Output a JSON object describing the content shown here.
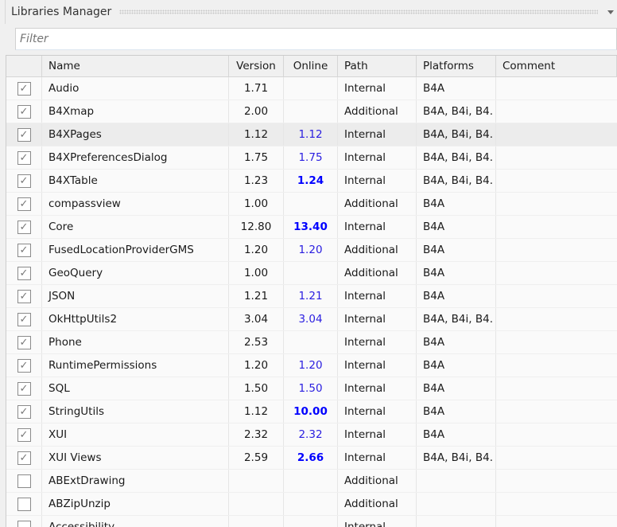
{
  "title": "Libraries Manager",
  "filter": {
    "placeholder": "Filter",
    "value": ""
  },
  "colors": {
    "online_normal": "#2a1ee0",
    "online_newer": "#0000ff"
  },
  "columns": [
    "",
    "Name",
    "Version",
    "Online",
    "Path",
    "Platforms",
    "Comment"
  ],
  "rows": [
    {
      "checked": true,
      "name": "Audio",
      "version": "1.71",
      "online": "",
      "newer": false,
      "path": "Internal",
      "platforms": "B4A",
      "comment": ""
    },
    {
      "checked": true,
      "name": "B4Xmap",
      "version": "2.00",
      "online": "",
      "newer": false,
      "path": "Additional",
      "platforms": "B4A, B4i, B4.",
      "comment": ""
    },
    {
      "checked": true,
      "name": "B4XPages",
      "version": "1.12",
      "online": "1.12",
      "newer": false,
      "path": "Internal",
      "platforms": "B4A, B4i, B4.",
      "comment": "",
      "selected": true
    },
    {
      "checked": true,
      "name": "B4XPreferencesDialog",
      "version": "1.75",
      "online": "1.75",
      "newer": false,
      "path": "Internal",
      "platforms": "B4A, B4i, B4.",
      "comment": ""
    },
    {
      "checked": true,
      "name": "B4XTable",
      "version": "1.23",
      "online": "1.24",
      "newer": true,
      "path": "Internal",
      "platforms": "B4A, B4i, B4.",
      "comment": ""
    },
    {
      "checked": true,
      "name": "compassview",
      "version": "1.00",
      "online": "",
      "newer": false,
      "path": "Additional",
      "platforms": "B4A",
      "comment": ""
    },
    {
      "checked": true,
      "name": "Core",
      "version": "12.80",
      "online": "13.40",
      "newer": true,
      "path": "Internal",
      "platforms": "B4A",
      "comment": ""
    },
    {
      "checked": true,
      "name": "FusedLocationProviderGMS",
      "version": "1.20",
      "online": "1.20",
      "newer": false,
      "path": "Additional",
      "platforms": "B4A",
      "comment": ""
    },
    {
      "checked": true,
      "name": "GeoQuery",
      "version": "1.00",
      "online": "",
      "newer": false,
      "path": "Additional",
      "platforms": "B4A",
      "comment": ""
    },
    {
      "checked": true,
      "name": "JSON",
      "version": "1.21",
      "online": "1.21",
      "newer": false,
      "path": "Internal",
      "platforms": "B4A",
      "comment": ""
    },
    {
      "checked": true,
      "name": "OkHttpUtils2",
      "version": "3.04",
      "online": "3.04",
      "newer": false,
      "path": "Internal",
      "platforms": "B4A, B4i, B4.",
      "comment": ""
    },
    {
      "checked": true,
      "name": "Phone",
      "version": "2.53",
      "online": "",
      "newer": false,
      "path": "Internal",
      "platforms": "B4A",
      "comment": ""
    },
    {
      "checked": true,
      "name": "RuntimePermissions",
      "version": "1.20",
      "online": "1.20",
      "newer": false,
      "path": "Internal",
      "platforms": "B4A",
      "comment": ""
    },
    {
      "checked": true,
      "name": "SQL",
      "version": "1.50",
      "online": "1.50",
      "newer": false,
      "path": "Internal",
      "platforms": "B4A",
      "comment": ""
    },
    {
      "checked": true,
      "name": "StringUtils",
      "version": "1.12",
      "online": "10.00",
      "newer": true,
      "path": "Internal",
      "platforms": "B4A",
      "comment": ""
    },
    {
      "checked": true,
      "name": "XUI",
      "version": "2.32",
      "online": "2.32",
      "newer": false,
      "path": "Internal",
      "platforms": "B4A",
      "comment": ""
    },
    {
      "checked": true,
      "name": "XUI Views",
      "version": "2.59",
      "online": "2.66",
      "newer": true,
      "path": "Internal",
      "platforms": "B4A, B4i, B4.",
      "comment": ""
    },
    {
      "checked": false,
      "name": "ABExtDrawing",
      "version": "",
      "online": "",
      "newer": false,
      "path": "Additional",
      "platforms": "",
      "comment": ""
    },
    {
      "checked": false,
      "name": "ABZipUnzip",
      "version": "",
      "online": "",
      "newer": false,
      "path": "Additional",
      "platforms": "",
      "comment": ""
    },
    {
      "checked": false,
      "name": "Accessibility",
      "version": "",
      "online": "",
      "newer": false,
      "path": "Internal",
      "platforms": "",
      "comment": ""
    }
  ]
}
